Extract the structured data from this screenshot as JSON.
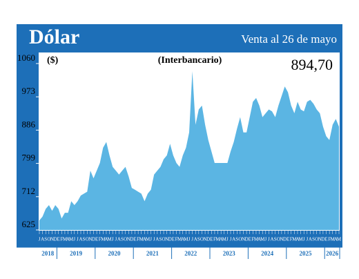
{
  "chart_data": {
    "type": "area",
    "title": "Dólar",
    "subtitle": "Venta al 26 de mayo",
    "label": "(Interbancario)",
    "unit": "($)",
    "annotation": "894,70",
    "color": "#5bb5e3",
    "frame_color": "#1d6fb8",
    "ylim": [
      625,
      1060
    ],
    "yticks": [
      625,
      712,
      799,
      886,
      973,
      1060
    ],
    "categories": [
      "J",
      "A",
      "S",
      "O",
      "N",
      "D",
      "E",
      "F",
      "M",
      "A",
      "M",
      "J",
      "J",
      "A",
      "S",
      "O",
      "N",
      "D",
      "E",
      "F",
      "M",
      "A",
      "M",
      "J",
      "J",
      "A",
      "S",
      "O",
      "N",
      "D",
      "E",
      "F",
      "M",
      "A",
      "M",
      "J",
      "J",
      "A",
      "S",
      "O",
      "N",
      "D",
      "E",
      "F",
      "M",
      "A",
      "M",
      "J",
      "J",
      "A",
      "S",
      "O",
      "N",
      "D",
      "E",
      "F",
      "M",
      "A",
      "M",
      "J",
      "J",
      "A",
      "S",
      "O",
      "N",
      "D",
      "E",
      "F",
      "M",
      "A",
      "M",
      "J",
      "J",
      "A",
      "S",
      "O",
      "N",
      "D",
      "E",
      "F",
      "M",
      "A",
      "M",
      "J",
      "J",
      "A",
      "S",
      "O",
      "N",
      "D",
      "E",
      "F",
      "M",
      "A",
      "M"
    ],
    "years": [
      "2018",
      "2019",
      "2020",
      "2021",
      "2022",
      "2023",
      "2024",
      "2025",
      "2026"
    ],
    "values": [
      650,
      660,
      680,
      690,
      675,
      690,
      680,
      655,
      670,
      670,
      700,
      690,
      700,
      715,
      720,
      725,
      780,
      760,
      780,
      800,
      840,
      855,
      820,
      790,
      780,
      770,
      780,
      790,
      765,
      735,
      730,
      725,
      720,
      700,
      720,
      730,
      770,
      780,
      790,
      810,
      820,
      850,
      820,
      800,
      790,
      820,
      840,
      880,
      1040,
      900,
      940,
      950,
      900,
      860,
      830,
      800,
      800,
      800,
      800,
      800,
      830,
      855,
      890,
      920,
      880,
      880,
      920,
      960,
      970,
      950,
      920,
      930,
      940,
      935,
      920,
      950,
      975,
      1000,
      985,
      950,
      930,
      960,
      940,
      935,
      960,
      965,
      955,
      940,
      930,
      895,
      870,
      860,
      900,
      915,
      895
    ]
  }
}
